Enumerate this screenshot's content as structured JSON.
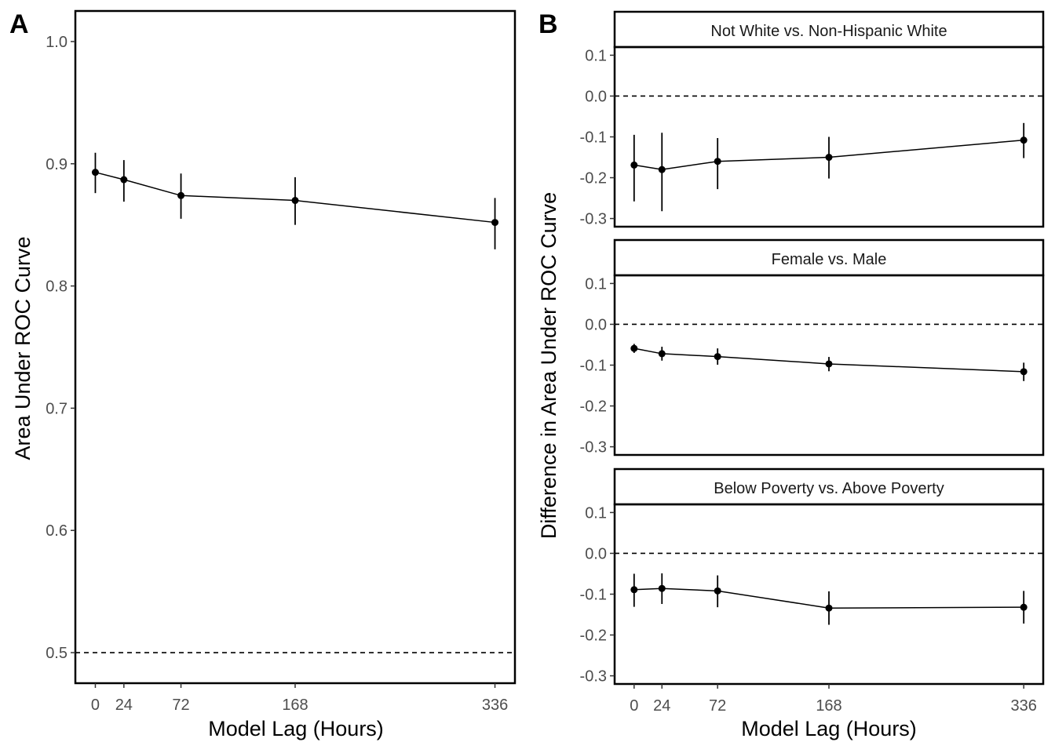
{
  "figure": {
    "panel_a_tag": "A",
    "panel_b_tag": "B",
    "x_axis_title": "Model Lag (Hours)",
    "panel_a_y_title": "Area Under ROC Curve",
    "panel_b_y_title": "Difference in Area Under ROC Curve"
  },
  "colors": {
    "line": "#000000",
    "text": "#4d4d4d",
    "background": "#ffffff"
  },
  "chart_data": [
    {
      "type": "line",
      "panel": "A",
      "xlabel": "Model Lag (Hours)",
      "ylabel": "Area Under ROC Curve",
      "x": [
        0,
        24,
        72,
        168,
        336
      ],
      "x_ticks": [
        "0",
        "24",
        "72",
        "168",
        "336"
      ],
      "y_ticks": [
        "0.5",
        "0.6",
        "0.7",
        "0.8",
        "0.9",
        "1.0"
      ],
      "ylim": [
        0.475,
        1.025
      ],
      "series": [
        {
          "values": [
            0.893,
            0.887,
            0.874,
            0.87,
            0.852
          ],
          "lower": [
            0.876,
            0.869,
            0.855,
            0.85,
            0.83
          ],
          "upper": [
            0.909,
            0.903,
            0.892,
            0.889,
            0.872
          ]
        }
      ],
      "reference_line": {
        "y": 0.5,
        "style": "dashed"
      },
      "grid": false
    },
    {
      "type": "line",
      "panel": "B",
      "layout": "facets stacked vertically",
      "xlabel": "Model Lag (Hours)",
      "ylabel": "Difference in Area Under ROC Curve",
      "x": [
        0,
        24,
        72,
        168,
        336
      ],
      "x_ticks": [
        "0",
        "24",
        "72",
        "168",
        "336"
      ],
      "y_ticks": [
        "-0.3",
        "-0.2",
        "-0.1",
        "0.0",
        "0.1"
      ],
      "ylim": [
        -0.32,
        0.12
      ],
      "reference_line": {
        "y": 0.0,
        "style": "dashed"
      },
      "grid": false,
      "facets": [
        {
          "strip_label": "Not White vs. Non-Hispanic White",
          "values": [
            -0.169,
            -0.18,
            -0.16,
            -0.15,
            -0.108
          ],
          "lower": [
            -0.258,
            -0.282,
            -0.228,
            -0.202,
            -0.152
          ],
          "upper": [
            -0.095,
            -0.09,
            -0.103,
            -0.1,
            -0.066
          ]
        },
        {
          "strip_label": "Female vs. Male",
          "values": [
            -0.059,
            -0.072,
            -0.079,
            -0.097,
            -0.116
          ],
          "lower": [
            -0.07,
            -0.089,
            -0.099,
            -0.115,
            -0.139
          ],
          "upper": [
            -0.048,
            -0.055,
            -0.059,
            -0.08,
            -0.094
          ]
        },
        {
          "strip_label": "Below Poverty vs. Above Poverty",
          "values": [
            -0.089,
            -0.086,
            -0.092,
            -0.134,
            -0.132
          ],
          "lower": [
            -0.131,
            -0.124,
            -0.132,
            -0.175,
            -0.172
          ],
          "upper": [
            -0.05,
            -0.049,
            -0.054,
            -0.093,
            -0.092
          ]
        }
      ]
    }
  ]
}
